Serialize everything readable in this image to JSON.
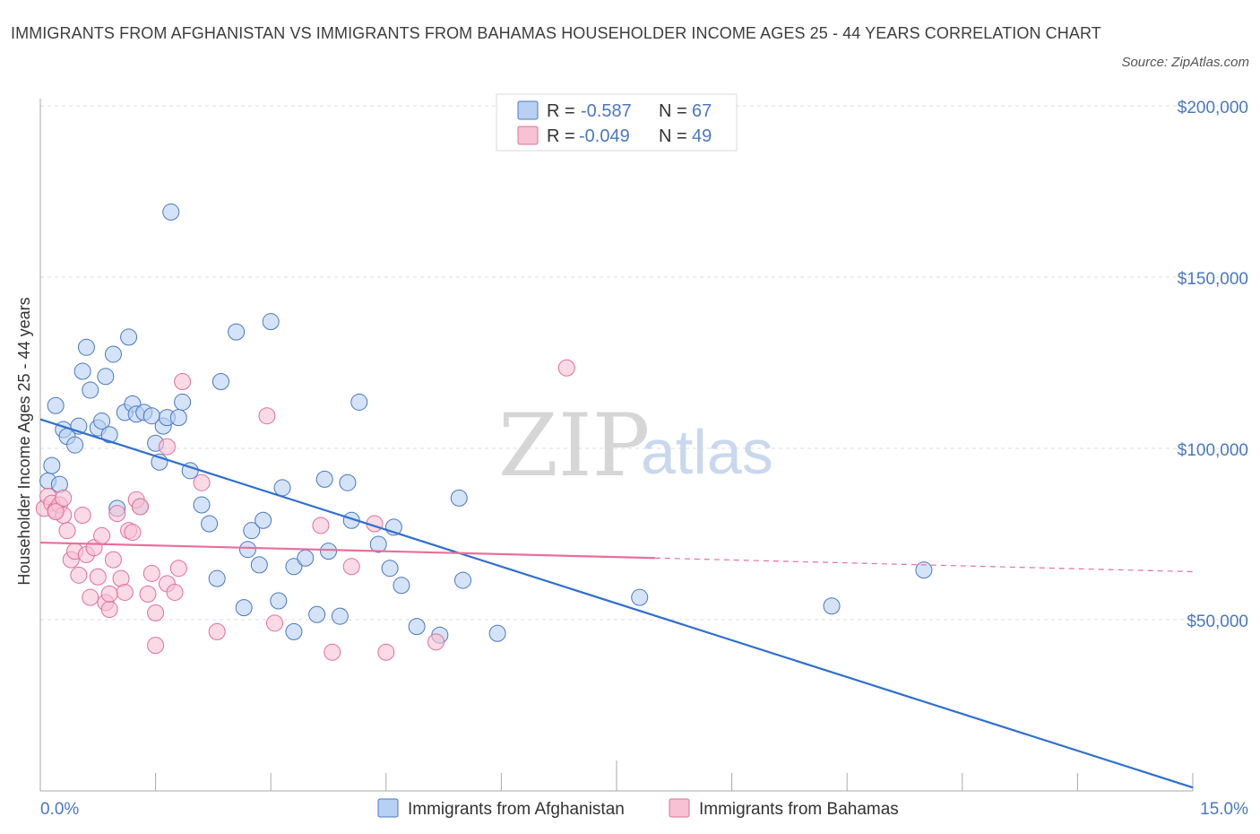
{
  "title": "IMMIGRANTS FROM AFGHANISTAN VS IMMIGRANTS FROM BAHAMAS HOUSEHOLDER INCOME AGES 25 - 44 YEARS CORRELATION CHART",
  "source": "Source: ZipAtlas.com",
  "watermark": {
    "zip": "ZIP",
    "atlas": "atlas"
  },
  "colors": {
    "blue": "#4a78c2",
    "blue_fill": "#b8d0f2",
    "blue_line": "#2f6fd0",
    "pink": "#e0709a",
    "pink_fill": "#f6c2d4",
    "pink_line": "#e8709a",
    "grid": "#dddddd"
  },
  "legend": {
    "rows": [
      {
        "r_label": "R =",
        "r_value": "-0.587",
        "n_label": "N =",
        "n_value": "67"
      },
      {
        "r_label": "R =",
        "r_value": "-0.049",
        "n_label": "N =",
        "n_value": "49"
      }
    ]
  },
  "bottom_legend": [
    "Immigrants from Afghanistan",
    "Immigrants from Bahamas"
  ],
  "chart_data": {
    "type": "scatter",
    "title": "IMMIGRANTS FROM AFGHANISTAN VS IMMIGRANTS FROM BAHAMAS HOUSEHOLDER INCOME AGES 25 - 44 YEARS CORRELATION CHART",
    "xlabel": "",
    "ylabel": "Householder Income Ages 25 - 44 years",
    "xlim": [
      0,
      15
    ],
    "ylim": [
      0,
      200000
    ],
    "x_tick_labels": [
      "0.0%",
      "15.0%"
    ],
    "y_ticks": [
      50000,
      100000,
      150000,
      200000
    ],
    "y_tick_labels": [
      "$50,000",
      "$100,000",
      "$150,000",
      "$200,000"
    ],
    "grid": true,
    "legend_position": "top-center",
    "series": [
      {
        "name": "Immigrants from Afghanistan",
        "color": "#4a78c2",
        "trend": {
          "x0": 0.0,
          "y0": 108500,
          "x1": 15.0,
          "y1": 1000,
          "style": "solid"
        },
        "points": [
          [
            0.1,
            90500
          ],
          [
            0.15,
            95000
          ],
          [
            0.25,
            89500
          ],
          [
            0.2,
            112500
          ],
          [
            0.3,
            105500
          ],
          [
            0.35,
            103500
          ],
          [
            0.45,
            101000
          ],
          [
            0.5,
            106500
          ],
          [
            0.55,
            122500
          ],
          [
            0.6,
            129500
          ],
          [
            0.65,
            117000
          ],
          [
            0.75,
            106000
          ],
          [
            0.8,
            108000
          ],
          [
            0.85,
            121000
          ],
          [
            0.9,
            104000
          ],
          [
            0.95,
            127500
          ],
          [
            1.0,
            82500
          ],
          [
            1.1,
            110500
          ],
          [
            1.15,
            132500
          ],
          [
            1.2,
            113000
          ],
          [
            1.25,
            110000
          ],
          [
            1.3,
            83000
          ],
          [
            1.35,
            110500
          ],
          [
            1.45,
            109500
          ],
          [
            1.5,
            101500
          ],
          [
            1.55,
            96000
          ],
          [
            1.6,
            106500
          ],
          [
            1.65,
            109000
          ],
          [
            1.7,
            169000
          ],
          [
            1.8,
            109000
          ],
          [
            1.85,
            113500
          ],
          [
            1.95,
            93500
          ],
          [
            2.1,
            83500
          ],
          [
            2.2,
            78000
          ],
          [
            2.3,
            62000
          ],
          [
            2.35,
            119500
          ],
          [
            2.55,
            134000
          ],
          [
            2.65,
            53500
          ],
          [
            2.7,
            70500
          ],
          [
            2.75,
            76000
          ],
          [
            2.85,
            66000
          ],
          [
            2.9,
            79000
          ],
          [
            3.0,
            137000
          ],
          [
            3.1,
            55500
          ],
          [
            3.15,
            88500
          ],
          [
            3.3,
            46500
          ],
          [
            3.3,
            65500
          ],
          [
            3.45,
            68000
          ],
          [
            3.6,
            51500
          ],
          [
            3.7,
            91000
          ],
          [
            3.75,
            70000
          ],
          [
            3.9,
            51000
          ],
          [
            4.0,
            90000
          ],
          [
            4.05,
            79000
          ],
          [
            4.15,
            113500
          ],
          [
            4.4,
            72000
          ],
          [
            4.55,
            65000
          ],
          [
            4.6,
            77000
          ],
          [
            4.7,
            60000
          ],
          [
            4.9,
            48000
          ],
          [
            5.2,
            45500
          ],
          [
            5.45,
            85500
          ],
          [
            5.5,
            61500
          ],
          [
            5.95,
            46000
          ],
          [
            7.8,
            56500
          ],
          [
            10.3,
            54000
          ],
          [
            11.5,
            64500
          ]
        ]
      },
      {
        "name": "Immigrants from Bahamas",
        "color": "#e0709a",
        "trend": {
          "x0": 0.0,
          "y0": 72500,
          "x1": 8.0,
          "y1": 68000,
          "dash_to_x": 15.0,
          "dash_to_y": 64000,
          "style": "solid-then-dashed"
        },
        "points": [
          [
            0.05,
            82500
          ],
          [
            0.1,
            86000
          ],
          [
            0.15,
            84000
          ],
          [
            0.2,
            82000
          ],
          [
            0.25,
            83500
          ],
          [
            0.3,
            85500
          ],
          [
            0.35,
            76000
          ],
          [
            0.4,
            67500
          ],
          [
            0.45,
            70000
          ],
          [
            0.5,
            63000
          ],
          [
            0.55,
            80500
          ],
          [
            0.6,
            69000
          ],
          [
            0.65,
            56500
          ],
          [
            0.7,
            71000
          ],
          [
            0.75,
            62500
          ],
          [
            0.8,
            74500
          ],
          [
            0.85,
            55000
          ],
          [
            0.9,
            53000
          ],
          [
            0.95,
            67500
          ],
          [
            1.0,
            81000
          ],
          [
            1.05,
            62000
          ],
          [
            1.1,
            58000
          ],
          [
            1.15,
            76000
          ],
          [
            1.2,
            75500
          ],
          [
            1.25,
            85000
          ],
          [
            1.3,
            83000
          ],
          [
            1.4,
            57500
          ],
          [
            1.45,
            63500
          ],
          [
            1.5,
            52000
          ],
          [
            1.65,
            60500
          ],
          [
            1.75,
            58000
          ],
          [
            1.8,
            65000
          ],
          [
            1.5,
            42500
          ],
          [
            1.65,
            100500
          ],
          [
            1.85,
            119500
          ],
          [
            2.1,
            90000
          ],
          [
            2.3,
            46500
          ],
          [
            2.95,
            109500
          ],
          [
            3.05,
            49000
          ],
          [
            3.65,
            77500
          ],
          [
            3.8,
            40500
          ],
          [
            4.05,
            65500
          ],
          [
            4.35,
            78000
          ],
          [
            4.5,
            40500
          ],
          [
            5.15,
            43500
          ],
          [
            6.85,
            123500
          ],
          [
            0.9,
            57500
          ],
          [
            0.3,
            80500
          ],
          [
            0.2,
            81500
          ]
        ]
      }
    ]
  }
}
